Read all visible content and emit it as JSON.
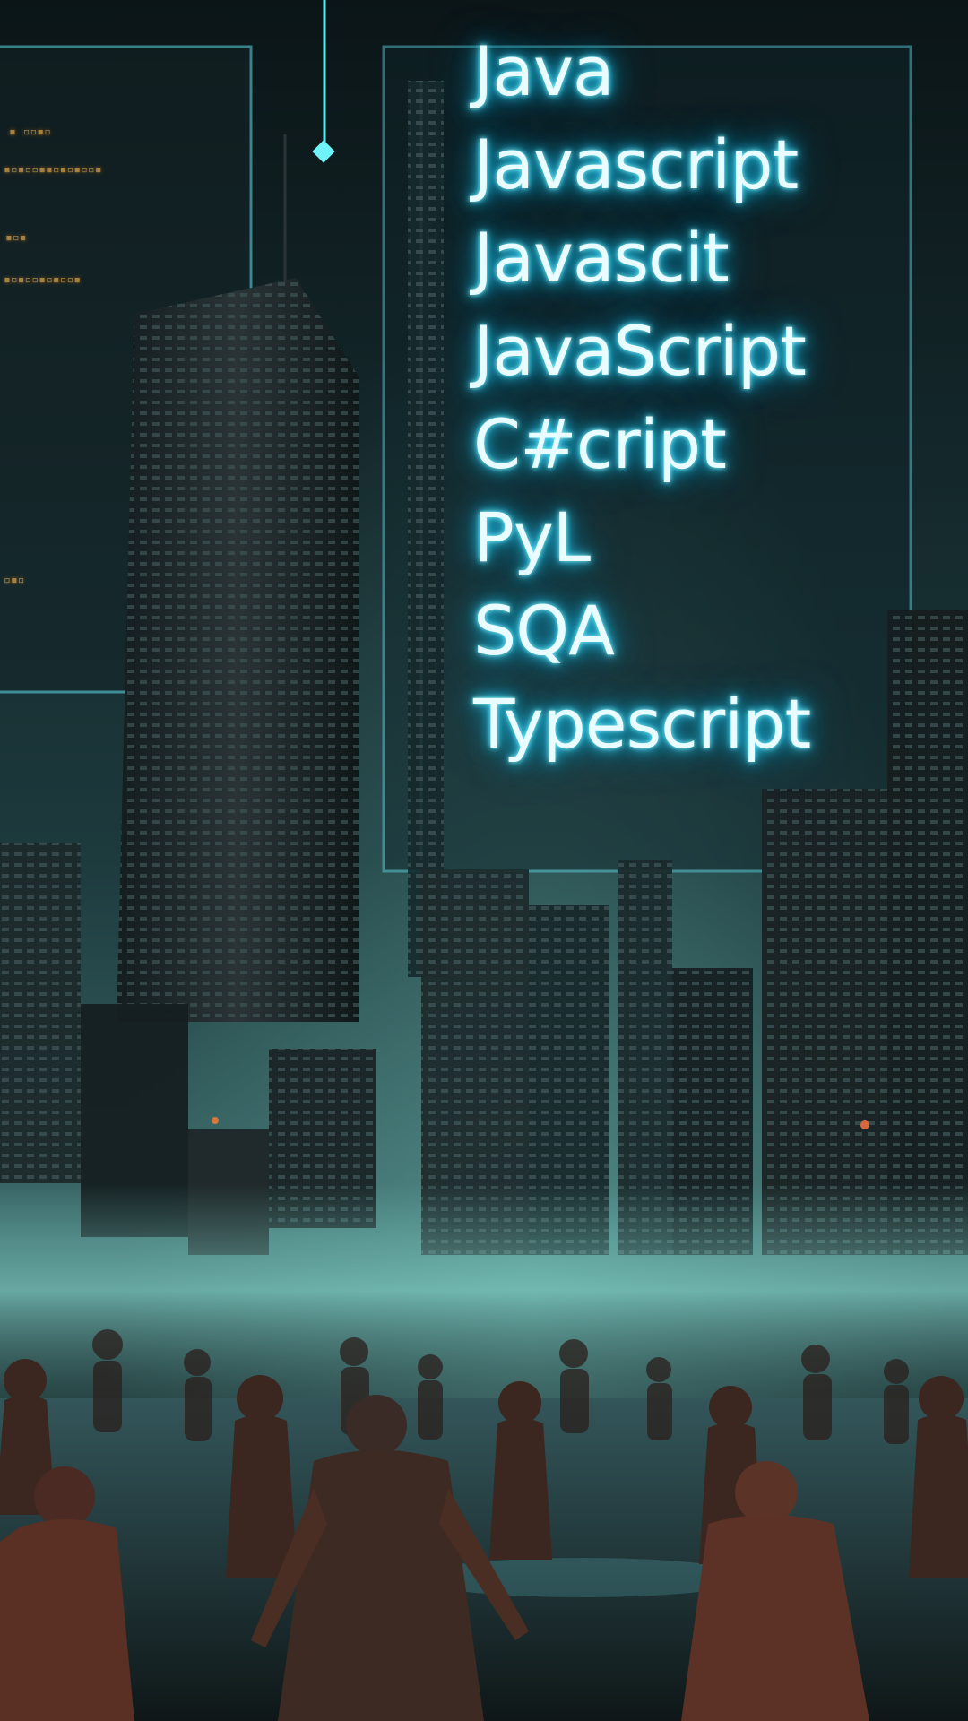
{
  "code_lines": [
    "Java",
    "Javascript",
    "Javascit",
    "JavaScript",
    "C#cript",
    "PyL",
    "SQA",
    "Typescript"
  ],
  "colors": {
    "glow": "#2fd6ff",
    "text": "#e9fcff",
    "fog": "#7fd0c6",
    "sky_dark": "#0b1517",
    "zombie": "#5a2f24"
  }
}
